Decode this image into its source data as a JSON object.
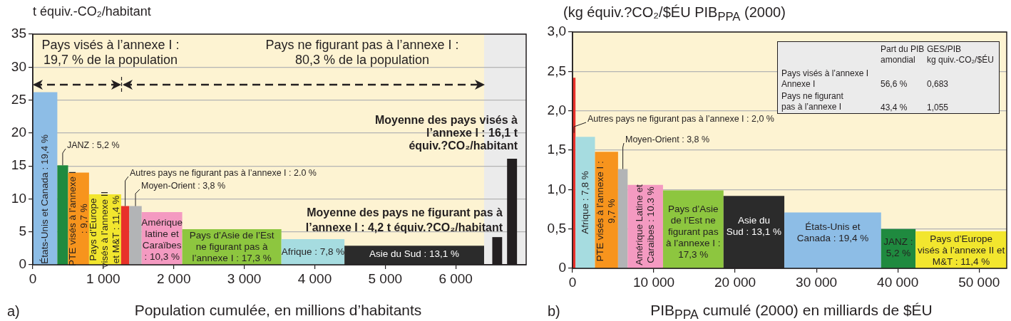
{
  "chart_data": [
    {
      "type": "histogram",
      "ylabel": "t équiv.-CO₂/habitant",
      "xlabel": "Population cumulée, en millions d’habitants",
      "bins": [
        0,
        348,
        501,
        798,
        1253,
        1369,
        1545,
        2120,
        3527,
        4422,
        6403,
        6519,
        6659,
        6729,
        6870
      ],
      "values": [
        26.2,
        15.1,
        14.0,
        10.7,
        8.9,
        8.9,
        8.0,
        5.4,
        3.9,
        2.9,
        null,
        4.2,
        null,
        16.1
      ],
      "colors": [
        "#8dbde6",
        "#1f8a3f",
        "#f7941d",
        "#f2e62e",
        "#e8312a",
        "#b2b4b6",
        "#f49ac1",
        "#8dc63f",
        "#a6dce0",
        "#2b2b2b",
        null,
        "#231f20",
        null,
        "#231f20"
      ],
      "xlim": [
        0,
        7000
      ],
      "xticks": [
        0,
        {
          "value": 1000,
          "label": "1 000"
        },
        {
          "value": 2000,
          "label": "2 000"
        },
        {
          "value": 3000,
          "label": "3 000"
        },
        {
          "value": 4000,
          "label": "4 000"
        },
        {
          "value": 5000,
          "label": "5 000"
        },
        {
          "value": 6000,
          "label": "6 000"
        }
      ],
      "ylim": [
        0,
        35
      ],
      "yticks": [
        0,
        5,
        10,
        15,
        20,
        25,
        30,
        35
      ],
      "grid": "y",
      "bands": [
        {
          "axis": "x",
          "from": 6403,
          "to": 7000,
          "color": "#ebebeb"
        }
      ],
      "annotations": [
        "a)",
        "Pays visés à l’annexe I :\n19,7 % de la population",
        "Pays ne figurant pas à l’annexe I :\n80,3 % de la population",
        "Moyenne des pays visés à\nl’annexe I : 16,1 t\néquiv.?CO₂/habitant",
        "Moyenne des pays ne figurant pas à\nl’annexe I : 4,2 t équiv.?CO₂/habitant",
        "États-Unis et Canada : 19,4 %",
        "PTE visés à l’annexe I\n: 9,7 %",
        "Pays d’Europe\nvisés à l’annexe II\net M&T : 11,4 %",
        "Amérique\nlatine et\nCaraïbes\n: 10,3 %",
        "Pays d’Asie de l’Est\nne figurant pas à\nl’annexe I : 17,3 %",
        "Afrique : 7,8 %",
        "Asie du Sud : 13,1 %",
        {
          "text": "JANZ : 5,2 %",
          "x": 424,
          "y": 15.1
        },
        {
          "text": "Autres pays ne figurant pas à l’annexe I : 2.0 %",
          "x": 1311,
          "y": 8.9
        },
        {
          "text": "Moyen-Orient : 3,8 %",
          "x": 1457,
          "y": 8.9
        }
      ]
    },
    {
      "type": "histogram",
      "ylabel": "(kg équiv.?CO₂/$ÉU PIB$_{PPA}$ (2000)",
      "xlabel": "PIB$_{PPA}$ cumulé (2000) en milliards de $ÉU",
      "bins": [
        0,
        368,
        2763,
        5601,
        6780,
        11128,
        18570,
        26050,
        37950,
        42190,
        53400
      ],
      "values": [
        2.42,
        1.67,
        1.48,
        1.26,
        1.06,
        0.99,
        0.92,
        0.71,
        0.5,
        0.47
      ],
      "colors": [
        "#e8312a",
        "#a6dce0",
        "#f7941d",
        "#b2b4b6",
        "#f49ac1",
        "#8dc63f",
        "#2b2b2b",
        "#8dbde6",
        "#1f8a3f",
        "#f2e62e"
      ],
      "xlim": [
        0,
        53400
      ],
      "xticks": [
        0,
        {
          "value": 10000,
          "label": "10 000"
        },
        {
          "value": 20000,
          "label": "20 000"
        },
        {
          "value": 30000,
          "label": "30 000"
        },
        {
          "value": 40000,
          "label": "40 000"
        },
        {
          "value": 50000,
          "label": "50 000"
        }
      ],
      "ylim": [
        0,
        3
      ],
      "yticks": [
        0,
        {
          "value": 0.5,
          "label": "0,5"
        },
        {
          "value": 1,
          "label": "1,0"
        },
        {
          "value": 1.5,
          "label": "1,5"
        },
        {
          "value": 2,
          "label": "2,0"
        },
        {
          "value": 2.5,
          "label": "2,5"
        },
        {
          "value": 3,
          "label": "3,0"
        }
      ],
      "grid": "y",
      "annotations": [
        "b)",
        "Part du PIB\namondial",
        "GES/PIB\nkg quiv.-CO₂/$ÉU",
        "Pays visés à l’annexe I\nAnnexe I",
        "56,6 %",
        "0,683",
        "Pays ne figurant\npas à l’annexe I",
        "43,4 %",
        "1,055",
        "Afrique : 7,8 %",
        "PTE visés à l’annexe I :\n9,7 %",
        "Amérique Latine et\nCaraibes : 10.3 %",
        "Pays d’Asie\nde l’Est ne\nfigurant pas\nà l’annexe I :\n17,3 %",
        "Asie du\nSud : 13,1 %",
        "États-Unis et\nCanada : 19,4 %",
        "JANZ :\n5,2 %",
        "Pays d’Europe\nvisés à l’annexe II et\nM&T : 11,4 %",
        {
          "text": "Autres pays ne figurant pas à l’annexe I : 2,0 %",
          "x": 184,
          "y": 1.72
        },
        {
          "text": "Moyen-Orient : 3,8 %",
          "x": 6190,
          "y": 1.26
        }
      ]
    }
  ]
}
